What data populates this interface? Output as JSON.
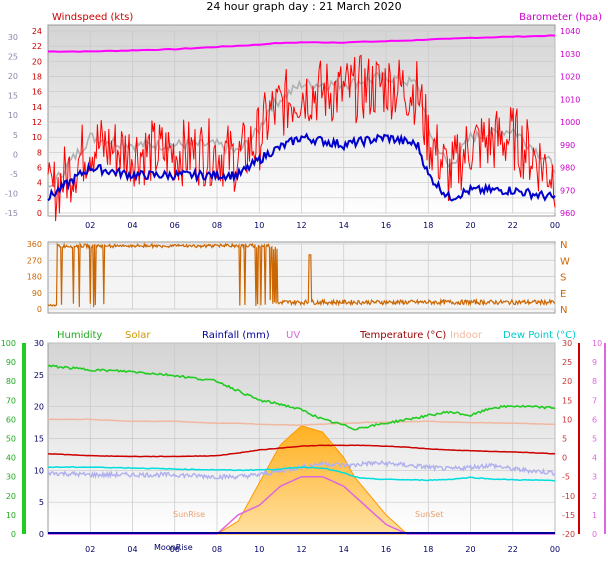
{
  "header": {
    "title": "24 hour graph day : 21 March 2020"
  },
  "x_ticks": [
    "02",
    "04",
    "06",
    "08",
    "10",
    "12",
    "14",
    "16",
    "18",
    "20",
    "22",
    "00"
  ],
  "colors": {
    "wind": "#ff0000",
    "wind_avg": "#0000cc",
    "wind_grey": "#b0b0b0",
    "baro": "#ff00ff",
    "dir": "#cc6600",
    "humidity": "#22cc22",
    "solar": "#ffaa22",
    "rain": "#000099",
    "uv": "#dd66dd",
    "temp": "#cc0000",
    "indoor": "#f0b8a0",
    "dew": "#00dddd",
    "lavender": "#b0b0ee"
  },
  "chart_data": [
    {
      "type": "line",
      "title": "Windspeed (kts)",
      "ylabel": "Windspeed (kts)",
      "y2label": "Barometer (hpa)",
      "left_ticks": [
        "24",
        "22",
        "20",
        "18",
        "16",
        "14",
        "12",
        "10",
        "8",
        "6",
        "4",
        "2",
        "0"
      ],
      "right_ticks": [
        "1040",
        "1030",
        "1020",
        "1010",
        "1000",
        "990",
        "980",
        "970",
        "960"
      ],
      "grey_ticks": [
        "30",
        "25",
        "20",
        "15",
        "10",
        "5",
        "0",
        "-5",
        "-10",
        "-15"
      ],
      "ylim": [
        0,
        24
      ],
      "y2lim": [
        960,
        1040
      ],
      "x": [
        0,
        2,
        4,
        6,
        8,
        9,
        10,
        10.5,
        12,
        14,
        16,
        17.5,
        18,
        19,
        20,
        22,
        24
      ],
      "series": [
        {
          "name": "Windspeed (kts)",
          "values": [
            2,
            9,
            8,
            8,
            8,
            7,
            10,
            13,
            16,
            16,
            17,
            16,
            10,
            5,
            9,
            10,
            5
          ]
        },
        {
          "name": "",
          "values": [
            2,
            6,
            5,
            5,
            5,
            5,
            7,
            8,
            10,
            9,
            10,
            9,
            5,
            2,
            3,
            3,
            2
          ]
        },
        {
          "name": "Barometer (hpa)",
          "values": [
            1031,
            1031,
            1031.5,
            1032,
            1033,
            1033.5,
            1034,
            1034.5,
            1035,
            1035,
            1035.5,
            1036,
            1036.3,
            1036.5,
            1037,
            1037.5,
            1038
          ]
        }
      ]
    },
    {
      "type": "line",
      "title": "",
      "left_ticks": [
        "360",
        "270",
        "180",
        "90",
        "0"
      ],
      "right_ticks": [
        "N",
        "W",
        "S",
        "E",
        "N"
      ],
      "ylim": [
        0,
        360
      ],
      "note": "wind direction, northerly flipping 0/360 until ~10:30 then easterly ~20-40",
      "x": [
        0,
        0.5,
        1,
        1.5,
        2,
        3,
        5,
        7,
        9,
        10,
        10.5,
        11,
        14,
        18,
        22,
        24
      ],
      "values": [
        10,
        350,
        340,
        20,
        350,
        355,
        350,
        355,
        350,
        30,
        360,
        15,
        30,
        35,
        30,
        25
      ]
    },
    {
      "type": "line",
      "legend": [
        "Humidity",
        "Solar",
        "Rainfall (mm)",
        "UV",
        "Temperature (°C)",
        "Indoor",
        "Dew Point (°C)"
      ],
      "left_ticks": [
        "100",
        "90",
        "80",
        "70",
        "60",
        "50",
        "40",
        "30",
        "20",
        "10",
        "0"
      ],
      "mid_ticks": [
        "30",
        "25",
        "20",
        "15",
        "10",
        "5",
        "0"
      ],
      "right_ticks": [
        "30",
        "25",
        "20",
        "15",
        "10",
        "5",
        "0",
        "-5",
        "-10",
        "-15",
        "-20"
      ],
      "right2_ticks": [
        "10",
        "9",
        "8",
        "7",
        "6",
        "5",
        "4",
        "3",
        "2",
        "1",
        "0"
      ],
      "annotations": [
        "SunRise",
        "SunSet",
        "MoonRise"
      ],
      "x": [
        0,
        2,
        4,
        6,
        8,
        9,
        10,
        11,
        12,
        13,
        14,
        14.5,
        15,
        16,
        17,
        18,
        19,
        20,
        21,
        22,
        24
      ],
      "series": [
        {
          "name": "Humidity",
          "values": [
            88,
            86,
            85,
            83,
            80,
            75,
            70,
            68,
            65,
            60,
            57,
            55,
            56,
            58,
            60,
            62,
            64,
            62,
            66,
            67,
            66
          ]
        },
        {
          "name": "Temperature (°C)",
          "values": [
            1,
            0.5,
            0.3,
            0.3,
            0.5,
            1.2,
            2,
            2.5,
            3,
            3.2,
            3.2,
            3.2,
            3.2,
            3,
            2.7,
            2.3,
            2,
            1.8,
            1.6,
            1.5,
            1.0
          ]
        },
        {
          "name": "Indoor",
          "values": [
            10,
            10,
            9.5,
            9.5,
            9,
            9,
            8.7,
            8.6,
            8.5,
            8.8,
            9,
            9,
            9.2,
            9.3,
            9.4,
            9.5,
            9.3,
            9.2,
            9.1,
            9,
            8.7
          ]
        },
        {
          "name": "Dew Point (°C)",
          "values": [
            -2.5,
            -2.5,
            -2.7,
            -3,
            -3.2,
            -3.3,
            -3.2,
            -3,
            -2.5,
            -2.7,
            -4,
            -5,
            -5.5,
            -5.7,
            -5.8,
            -5.9,
            -5.7,
            -5.2,
            -5.6,
            -5.8,
            -6
          ]
        },
        {
          "name": "",
          "values": [
            -4,
            -4.5,
            -4.5,
            -4.5,
            -5,
            -5,
            -4.5,
            -3.5,
            -2.5,
            -1.5,
            -2,
            -2,
            -1.5,
            -1.5,
            -2,
            -2.5,
            -3,
            -2.5,
            -2,
            -3,
            -4
          ]
        },
        {
          "name": "Solar",
          "values": [
            0,
            0,
            0,
            0,
            0,
            2,
            8,
            14,
            17,
            16,
            12,
            9,
            7,
            3,
            0,
            0,
            0,
            0,
            0,
            0,
            0
          ]
        },
        {
          "name": "UV",
          "values": [
            0,
            0,
            0,
            0,
            0,
            1,
            1.5,
            2.5,
            3,
            3,
            2.5,
            2,
            1.5,
            0.5,
            0,
            0,
            0,
            0,
            0,
            0,
            0
          ]
        }
      ]
    }
  ]
}
